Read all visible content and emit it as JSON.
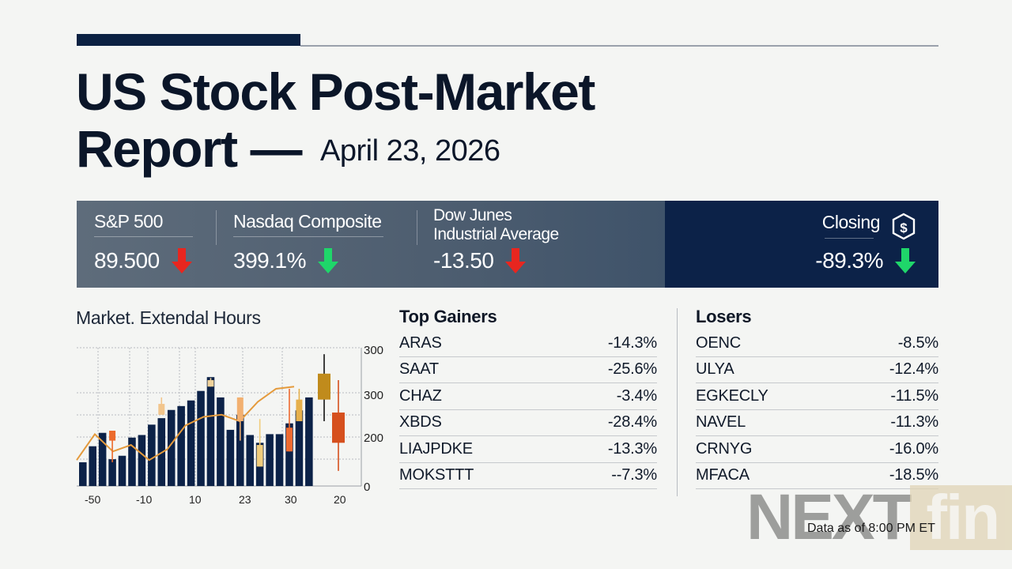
{
  "header": {
    "title_line1": "US Stock Post-Market",
    "title_line2": "Report —",
    "date": "April 23, 2026"
  },
  "indices": [
    {
      "name": "S&P 500",
      "value": "89.500",
      "direction": "down",
      "arrow_color": "#e8261f"
    },
    {
      "name": "Nasdaq Composite",
      "value": "399.1%",
      "direction": "down",
      "arrow_color": "#1fd66a"
    },
    {
      "name_line1": "Dow Junes",
      "name_line2": "Industrial Average",
      "value": "-13.50",
      "direction": "down",
      "arrow_color": "#e8261f"
    },
    {
      "name": "Closing",
      "icon": "dollar-shield-icon",
      "value": "-89.3%",
      "direction": "down",
      "arrow_color": "#1fd66a"
    }
  ],
  "chart_section": {
    "title": "Market. Extendal Hours"
  },
  "chart_data": {
    "type": "bar",
    "title": "Market. Extendal Hours",
    "xlabel": "",
    "ylabel": "",
    "x_tick_labels": [
      "-50",
      "-10",
      "10",
      "23",
      "30",
      "20"
    ],
    "y_tick_labels": [
      "300",
      "300",
      "200",
      "0"
    ],
    "ylim": [
      0,
      300
    ],
    "grid": true,
    "bars": {
      "name": "Volume",
      "color": "#0c2248",
      "values": [
        55,
        92,
        123,
        62,
        70,
        112,
        118,
        142,
        157,
        176,
        185,
        198,
        220,
        252,
        205,
        130,
        165,
        118,
        100,
        120,
        120,
        145,
        175,
        205,
        220,
        215
      ]
    },
    "line": {
      "name": "Trend",
      "color": "#e49a3c",
      "values": [
        60,
        120,
        80,
        95,
        60,
        85,
        140,
        160,
        165,
        150,
        195,
        225,
        230
      ]
    },
    "candles": [
      {
        "x": 3,
        "open": 128,
        "close": 105,
        "high": 128,
        "low": 55,
        "color": "#ec6a2c"
      },
      {
        "x": 8,
        "open": 190,
        "close": 165,
        "high": 205,
        "low": 165,
        "color": "#f2c58c"
      },
      {
        "x": 13,
        "open": 245,
        "close": 230,
        "high": 250,
        "low": 230,
        "color": "#f0d29a"
      },
      {
        "x": 16,
        "open": 205,
        "close": 150,
        "high": 205,
        "low": 105,
        "color": "#f2b070"
      },
      {
        "x": 18,
        "open": 95,
        "close": 45,
        "high": 155,
        "low": 45,
        "color": "#f0cc7c"
      },
      {
        "x": 21,
        "open": 135,
        "close": 80,
        "high": 225,
        "low": 80,
        "color": "#ee6a30"
      },
      {
        "x": 22,
        "open": 200,
        "close": 150,
        "high": 225,
        "low": 150,
        "color": "#e6b04c"
      },
      {
        "x": 25,
        "open": 260,
        "close": 200,
        "high": 305,
        "low": 150,
        "color": "#c08b1c"
      },
      {
        "x": 26,
        "open": 170,
        "close": 100,
        "high": 245,
        "low": 35,
        "color": "#d6501e"
      }
    ]
  },
  "gainers": {
    "title": "Top Gainers",
    "rows": [
      {
        "ticker": "ARAS",
        "change": "-14.3%"
      },
      {
        "ticker": "SAAT",
        "change": "-25.6%"
      },
      {
        "ticker": "CHAZ",
        "change": "-3.4%"
      },
      {
        "ticker": "XBDS",
        "change": "-28.4%"
      },
      {
        "ticker": "LIAJPDKE",
        "change": "-13.3%"
      },
      {
        "ticker": "MOKSTTT",
        "change": "--7.3%"
      }
    ]
  },
  "losers": {
    "title": "Losers",
    "rows": [
      {
        "ticker": "OENC",
        "change": "-8.5%"
      },
      {
        "ticker": "ULYA",
        "change": "-12.4%"
      },
      {
        "ticker": "EGKECLY",
        "change": "-11.5%"
      },
      {
        "ticker": "NAVEL",
        "change": "-11.3%"
      },
      {
        "ticker": "CRNYG",
        "change": "-16.0%"
      },
      {
        "ticker": "MFACA",
        "change": "-18.5%"
      }
    ]
  },
  "watermark": {
    "part1": "NEXT",
    "part2": "fin"
  },
  "footer": {
    "data_as_of": "Data as of 8:00 PM ET"
  }
}
